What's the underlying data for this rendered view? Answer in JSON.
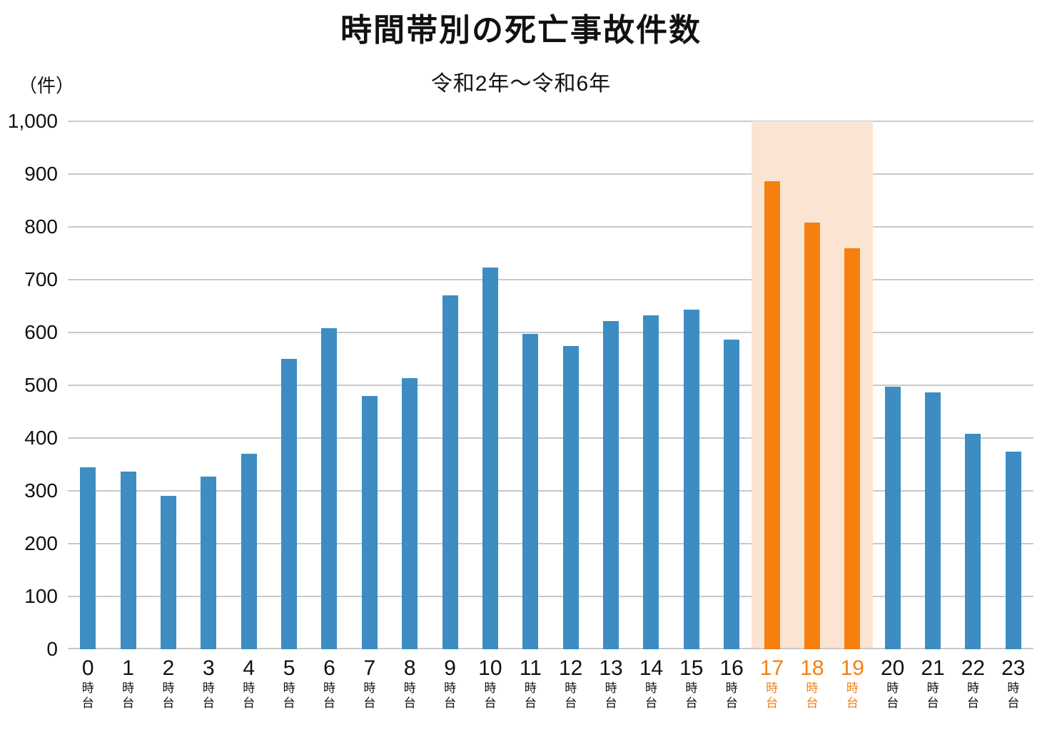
{
  "chart_data": {
    "type": "bar",
    "title": "時間帯別の死亡事故件数",
    "subtitle": "令和2年～令和6年",
    "unit_label": "（件）",
    "categories": [
      "0時台",
      "1時台",
      "2時台",
      "3時台",
      "4時台",
      "5時台",
      "6時台",
      "7時台",
      "8時台",
      "9時台",
      "10時台",
      "11時台",
      "12時台",
      "13時台",
      "14時台",
      "15時台",
      "16時台",
      "17時台",
      "18時台",
      "19時台",
      "20時台",
      "21時台",
      "22時台",
      "23時台"
    ],
    "hour_labels": [
      "0",
      "1",
      "2",
      "3",
      "4",
      "5",
      "6",
      "7",
      "8",
      "9",
      "10",
      "11",
      "12",
      "13",
      "14",
      "15",
      "16",
      "17",
      "18",
      "19",
      "20",
      "21",
      "22",
      "23"
    ],
    "hour_suffix_chars": [
      "時",
      "台"
    ],
    "values": [
      345,
      337,
      290,
      327,
      370,
      550,
      608,
      480,
      513,
      670,
      723,
      597,
      575,
      621,
      632,
      643,
      586,
      886,
      808,
      760,
      497,
      487,
      408,
      375
    ],
    "highlight_indices": [
      17,
      18,
      19
    ],
    "highlighted_categories": [
      "17時台",
      "18時台",
      "19時台"
    ],
    "ylim": [
      0,
      1000
    ],
    "ytick_step": 100,
    "ytick_labels": [
      "0",
      "100",
      "200",
      "300",
      "400",
      "500",
      "600",
      "700",
      "800",
      "900",
      "1,000"
    ],
    "grid": true,
    "legend": "none",
    "colors": {
      "bar": "#3d8dc3",
      "highlight_bar": "#f5800f",
      "highlight_band": "#fce4d3",
      "highlight_label": "#f5800f",
      "gridline": "#c9c9c9",
      "baseline": "#c9c9c9",
      "text": "#111111"
    }
  }
}
